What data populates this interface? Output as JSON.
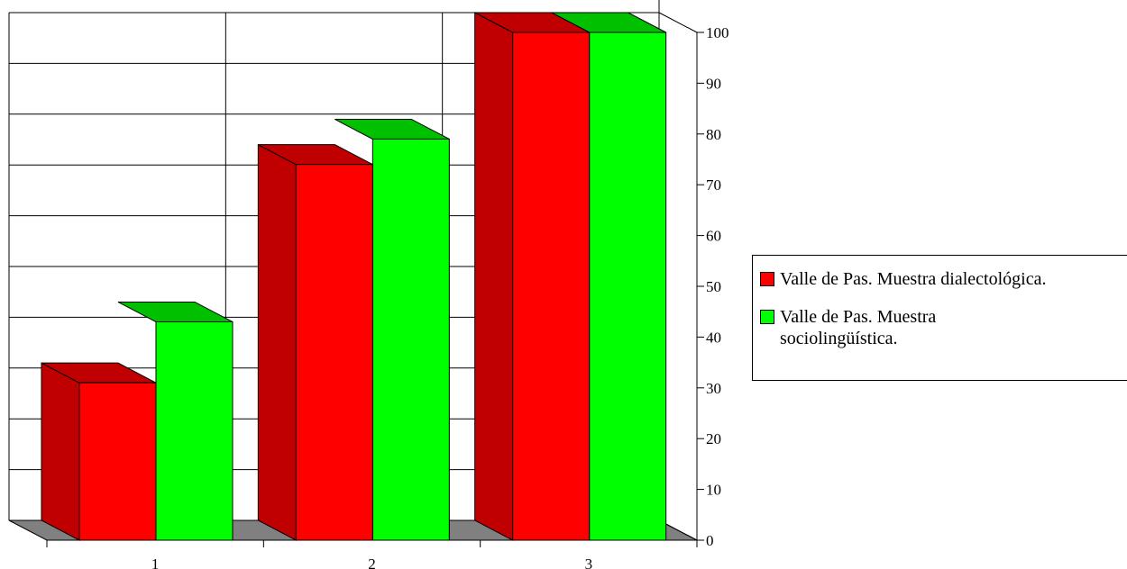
{
  "chart_data": {
    "type": "bar",
    "three_d": true,
    "categories": [
      "1",
      "2",
      "3"
    ],
    "series": [
      {
        "name": "Valle de Pas. Muestra dialectológica.",
        "values": [
          31,
          74,
          100
        ],
        "color": "#ff0000",
        "side_color": "#c00000"
      },
      {
        "name": "Valle de Pas. Muestra sociolingüística.",
        "values": [
          43,
          79,
          100
        ],
        "color": "#00ff00",
        "top_color": "#00c000"
      }
    ],
    "yaxis": {
      "position": "right",
      "min": 0,
      "max": 100,
      "step": 10,
      "ticks": [
        "0",
        "10",
        "20",
        "30",
        "40",
        "50",
        "60",
        "70",
        "80",
        "90",
        "100"
      ]
    },
    "grid": true,
    "floor_color": "#808080",
    "legend_position": "right"
  }
}
